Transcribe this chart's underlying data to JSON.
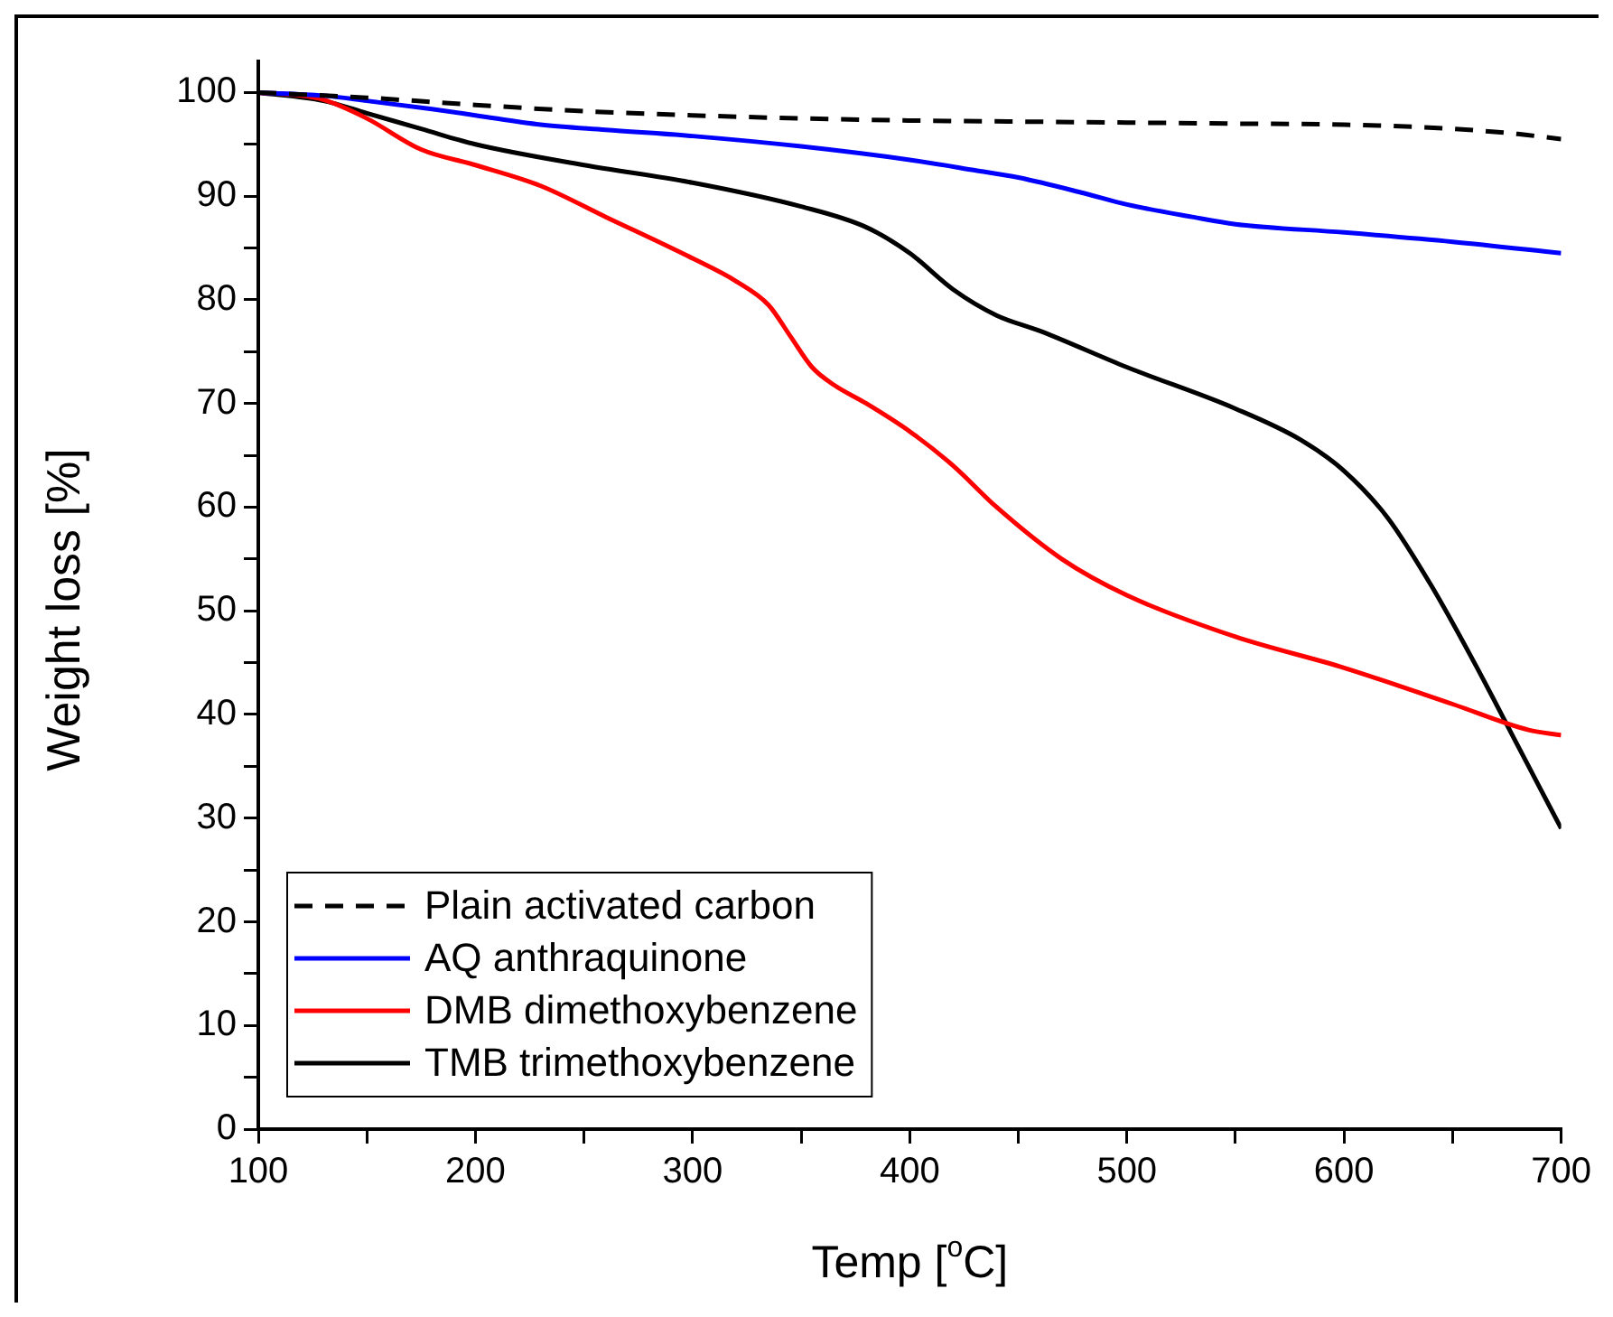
{
  "chart_data": {
    "type": "line",
    "xlabel": "Temp [$^{o}$C]",
    "ylabel": "Weight loss [%]",
    "xlim": [
      100,
      700
    ],
    "ylim": [
      0,
      103
    ],
    "xticks": [
      100,
      {
        "value": 150,
        "label": null
      },
      200,
      {
        "value": 250,
        "label": null
      },
      300,
      {
        "value": 350,
        "label": null
      },
      400,
      {
        "value": 450,
        "label": null
      },
      500,
      {
        "value": 550,
        "label": null
      },
      600,
      {
        "value": 650,
        "label": null
      },
      700
    ],
    "yticks": [
      0,
      {
        "value": 5,
        "label": null
      },
      10,
      {
        "value": 15,
        "label": null
      },
      20,
      {
        "value": 25,
        "label": null
      },
      30,
      {
        "value": 35,
        "label": null
      },
      40,
      {
        "value": 45,
        "label": null
      },
      50,
      {
        "value": 55,
        "label": null
      },
      60,
      {
        "value": 65,
        "label": null
      },
      70,
      {
        "value": 75,
        "label": null
      },
      80,
      {
        "value": 85,
        "label": null
      },
      90,
      {
        "value": 95,
        "label": null
      },
      100
    ],
    "grid": false,
    "legend": "bottom left",
    "marker": "none",
    "series": [
      {
        "name": "Plain activated carbon",
        "color": "#000000",
        "line_style": "dashed",
        "x": [
          100,
          150,
          200,
          250,
          300,
          350,
          400,
          450,
          500,
          550,
          600,
          650,
          680,
          700
        ],
        "values": [
          100,
          99.5,
          98.8,
          98.2,
          97.8,
          97.5,
          97.3,
          97.2,
          97.1,
          97.0,
          96.9,
          96.5,
          96.0,
          95.5
        ]
      },
      {
        "name": "AQ anthraquinone",
        "color": "#0000ff",
        "line_style": "solid",
        "x": [
          100,
          130,
          150,
          180,
          200,
          230,
          260,
          300,
          350,
          400,
          430,
          450,
          480,
          500,
          530,
          550,
          600,
          650,
          700
        ],
        "values": [
          100,
          99.7,
          99.2,
          98.4,
          97.8,
          96.9,
          96.4,
          95.8,
          94.8,
          93.5,
          92.5,
          91.8,
          90.3,
          89.2,
          88.0,
          87.3,
          86.5,
          85.6,
          84.5
        ]
      },
      {
        "name": "DMB dimethoxybenzene",
        "color": "#ff0000",
        "line_style": "solid",
        "x": [
          100,
          120,
          130,
          150,
          175,
          200,
          230,
          260,
          300,
          320,
          335,
          345,
          355,
          365,
          380,
          400,
          420,
          440,
          470,
          500,
          550,
          600,
          650,
          685,
          700
        ],
        "values": [
          100,
          99.7,
          99.3,
          97.5,
          94.5,
          93,
          91,
          88,
          84,
          81.8,
          79.5,
          76.5,
          73.5,
          71.8,
          70,
          67.3,
          64,
          60,
          55,
          51.5,
          47.5,
          44.5,
          41,
          38.5,
          38
        ]
      },
      {
        "name": "TMB trimethoxybenzene",
        "color": "#000000",
        "line_style": "solid",
        "x": [
          100,
          130,
          150,
          175,
          200,
          250,
          300,
          350,
          380,
          400,
          420,
          440,
          460,
          500,
          550,
          580,
          600,
          620,
          640,
          660,
          680,
          690,
          700
        ],
        "values": [
          100,
          99.2,
          98,
          96.5,
          95,
          93,
          91.3,
          89,
          87,
          84.5,
          81,
          78.5,
          77,
          73.5,
          69.5,
          66.5,
          63.5,
          59,
          52.5,
          45,
          37,
          33,
          29
        ]
      }
    ]
  }
}
